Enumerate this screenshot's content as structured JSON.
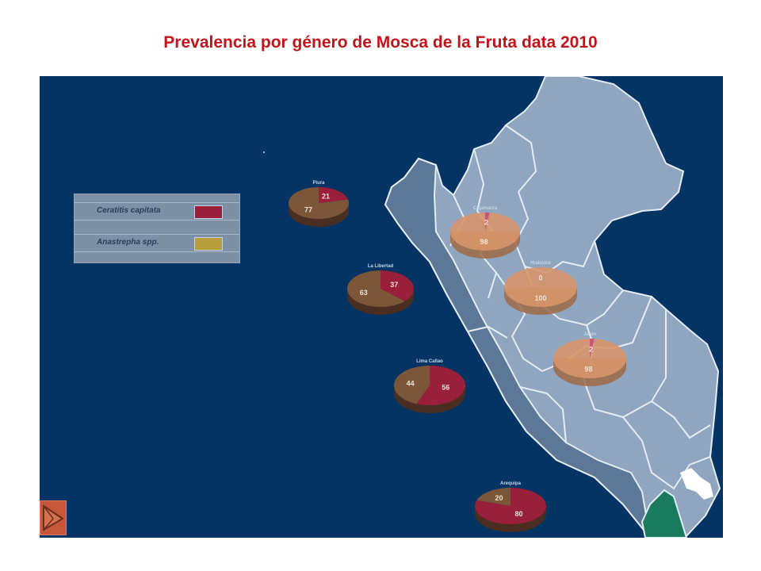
{
  "title": "Prevalencia por género de Mosca  de la Fruta data 2010",
  "legend": {
    "items": [
      {
        "label": "Ceratitis capitata",
        "color": "#9a1f3a"
      },
      {
        "label": "Anastrepha spp.",
        "color": "#b7a03c"
      }
    ]
  },
  "colors": {
    "ocean": "#043463",
    "land": "#8fa5c0",
    "coast": "#5d7896",
    "ceratitis": "#9a1f3a",
    "anastrepha": "#7b5638",
    "highlight": "#1a7a5e"
  },
  "regions": [
    {
      "name": "Piura",
      "ceratitis": 21,
      "anastrepha": 77,
      "ceratitis_label": "21",
      "anastrepha_label": "77",
      "style": "dark"
    },
    {
      "name": "La Libertad",
      "ceratitis": 37,
      "anastrepha": 63,
      "ceratitis_label": "37",
      "anastrepha_label": "63",
      "style": "dark"
    },
    {
      "name": "Lima Callao",
      "ceratitis": 56,
      "anastrepha": 44,
      "ceratitis_label": "56",
      "anastrepha_label": "44",
      "style": "dark"
    },
    {
      "name": "Arequipa",
      "ceratitis": 80,
      "anastrepha": 20,
      "ceratitis_label": "80",
      "anastrepha_label": "20",
      "style": "dark"
    },
    {
      "name": "Cajamarca",
      "ceratitis": 2,
      "anastrepha": 98,
      "ceratitis_label": "2",
      "anastrepha_label": "98",
      "style": "light"
    },
    {
      "name": "Huánuco",
      "ceratitis": 0,
      "anastrepha": 100,
      "ceratitis_label": "0",
      "anastrepha_label": "100",
      "style": "light"
    },
    {
      "name": "Junín",
      "ceratitis": 2,
      "anastrepha": 98,
      "ceratitis_label": "2",
      "anastrepha_label": "98",
      "style": "light"
    }
  ]
}
